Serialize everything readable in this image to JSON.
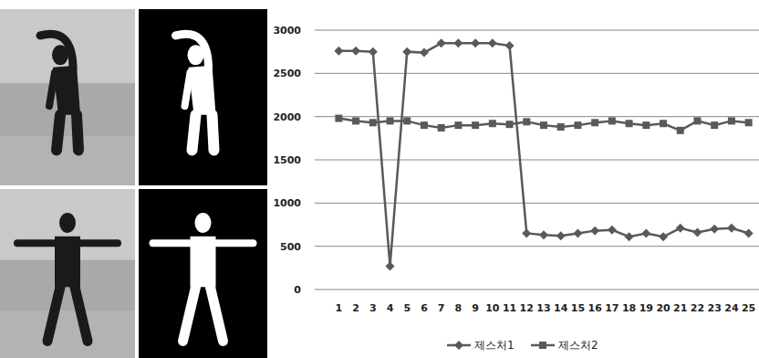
{
  "chart_data": {
    "type": "line",
    "categories": [
      "1",
      "2",
      "3",
      "4",
      "5",
      "6",
      "7",
      "8",
      "9",
      "10",
      "11",
      "12",
      "13",
      "14",
      "15",
      "16",
      "17",
      "18",
      "19",
      "20",
      "21",
      "22",
      "23",
      "24",
      "25"
    ],
    "series": [
      {
        "name": "제스처1",
        "color": "#595959",
        "marker": "diamond",
        "line_style": "solid",
        "values": [
          2760,
          2760,
          2750,
          270,
          2750,
          2740,
          2850,
          2850,
          2850,
          2850,
          2820,
          650,
          630,
          620,
          650,
          680,
          690,
          610,
          650,
          610,
          710,
          660,
          700,
          710,
          650
        ]
      },
      {
        "name": "제스처2",
        "color": "#595959",
        "marker": "square",
        "line_style": "solid",
        "values": [
          1980,
          1950,
          1930,
          1950,
          1950,
          1900,
          1870,
          1900,
          1900,
          1920,
          1910,
          1940,
          1900,
          1880,
          1900,
          1930,
          1950,
          1920,
          1900,
          1920,
          1840,
          1950,
          1900,
          1950,
          1930
        ]
      }
    ],
    "ylim": [
      0,
      3000
    ],
    "yticks": [
      0,
      500,
      1000,
      1500,
      2000,
      2500,
      3000
    ],
    "grid": true,
    "legend": "bottom"
  }
}
